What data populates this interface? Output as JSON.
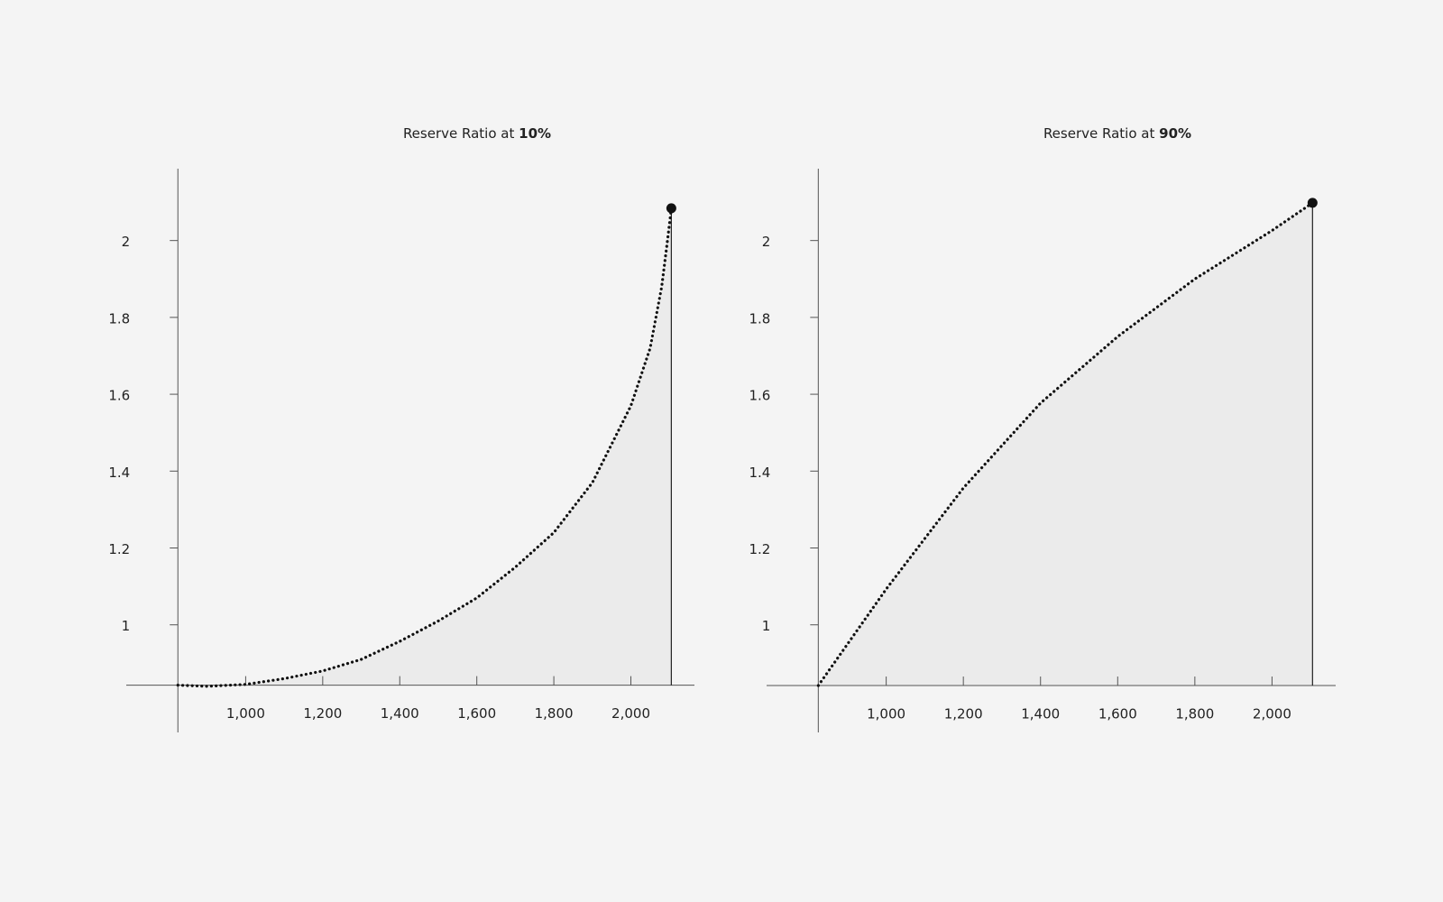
{
  "chart_data": [
    {
      "type": "area",
      "title": "Reserve Ratio at",
      "title_highlight": "10%",
      "color": "#111111",
      "fill": "#ebebeb",
      "x": [
        824,
        900,
        1000,
        1100,
        1200,
        1300,
        1400,
        1500,
        1600,
        1700,
        1800,
        1900,
        2000,
        2050,
        2080,
        2095,
        2105
      ],
      "values": [
        0.843,
        0.84,
        0.845,
        0.86,
        0.88,
        0.91,
        0.957,
        1.01,
        1.07,
        1.15,
        1.24,
        1.37,
        1.57,
        1.72,
        1.88,
        2.0,
        2.084
      ],
      "xlim": [
        690,
        2165
      ],
      "ylim": [
        0.72,
        2.187
      ],
      "xticks": [
        {
          "value": 1000,
          "label": "1,000"
        },
        {
          "value": 1200,
          "label": "1,200"
        },
        {
          "value": 1400,
          "label": "1,400"
        },
        {
          "value": 1600,
          "label": "1,600"
        },
        {
          "value": 1800,
          "label": "1,800"
        },
        {
          "value": 2000,
          "label": "2,000"
        }
      ],
      "yticks": [
        1,
        1.2,
        1.4,
        1.6,
        1.8,
        2
      ]
    },
    {
      "type": "area",
      "title": "Reserve Ratio at",
      "title_highlight": "90%",
      "color": "#111111",
      "fill": "#ebebeb",
      "x": [
        824,
        1000,
        1200,
        1400,
        1600,
        1800,
        2000,
        2105
      ],
      "values": [
        0.842,
        1.093,
        1.356,
        1.577,
        1.75,
        1.9,
        2.026,
        2.098
      ],
      "xlim": [
        690,
        2165
      ],
      "ylim": [
        0.72,
        2.187
      ],
      "xticks": [
        {
          "value": 1000,
          "label": "1,000"
        },
        {
          "value": 1200,
          "label": "1,200"
        },
        {
          "value": 1400,
          "label": "1,400"
        },
        {
          "value": 1600,
          "label": "1,600"
        },
        {
          "value": 1800,
          "label": "1,800"
        },
        {
          "value": 2000,
          "label": "2,000"
        }
      ],
      "yticks": [
        1,
        1.2,
        1.4,
        1.6,
        1.8,
        2
      ]
    }
  ]
}
